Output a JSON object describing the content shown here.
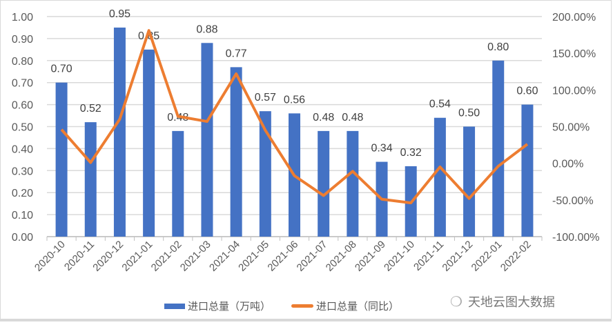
{
  "chart_data": {
    "type": "bar+line",
    "categories": [
      "2020-10",
      "2020-11",
      "2020-12",
      "2021-01",
      "2021-02",
      "2021-03",
      "2021-04",
      "2021-05",
      "2021-06",
      "2021-07",
      "2021-08",
      "2021-09",
      "2021-10",
      "2021-11",
      "2021-12",
      "2022-01",
      "2022-02"
    ],
    "series": [
      {
        "name": "进口总量（万吨）",
        "type": "bar",
        "axis": "left",
        "color": "#4472c4",
        "values": [
          0.7,
          0.52,
          0.95,
          0.85,
          0.48,
          0.88,
          0.77,
          0.57,
          0.56,
          0.48,
          0.48,
          0.34,
          0.32,
          0.54,
          0.5,
          0.8,
          0.6
        ],
        "labels": [
          "0.70",
          "0.52",
          "0.95",
          "0.85",
          "0.48",
          "0.88",
          "0.77",
          "0.57",
          "0.56",
          "0.48",
          "0.48",
          "0.34",
          "0.32",
          "0.54",
          "0.50",
          "0.80",
          "0.60"
        ]
      },
      {
        "name": "进口总量（同比）",
        "type": "line",
        "axis": "right",
        "color": "#ed7d31",
        "values": [
          46,
          1,
          60,
          181,
          64,
          57,
          122,
          45,
          -17,
          -44,
          -11,
          -49,
          -54,
          -5,
          -48,
          -4,
          26
        ]
      }
    ],
    "y_left": {
      "lim": [
        0,
        1.0
      ],
      "ticks": [
        "0.00",
        "0.10",
        "0.20",
        "0.30",
        "0.40",
        "0.50",
        "0.60",
        "0.70",
        "0.80",
        "0.90",
        "1.00"
      ]
    },
    "y_right": {
      "lim": [
        -100,
        200
      ],
      "ticks": [
        "-100.00%",
        "-50.00%",
        "0.00%",
        "50.00%",
        "100.00%",
        "150.00%",
        "200.00%"
      ]
    },
    "grid": true,
    "legend_position": "bottom"
  },
  "legend": {
    "bar": "进口总量（万吨）",
    "line": "进口总量（同比）"
  },
  "watermark": "天地云图大数据"
}
